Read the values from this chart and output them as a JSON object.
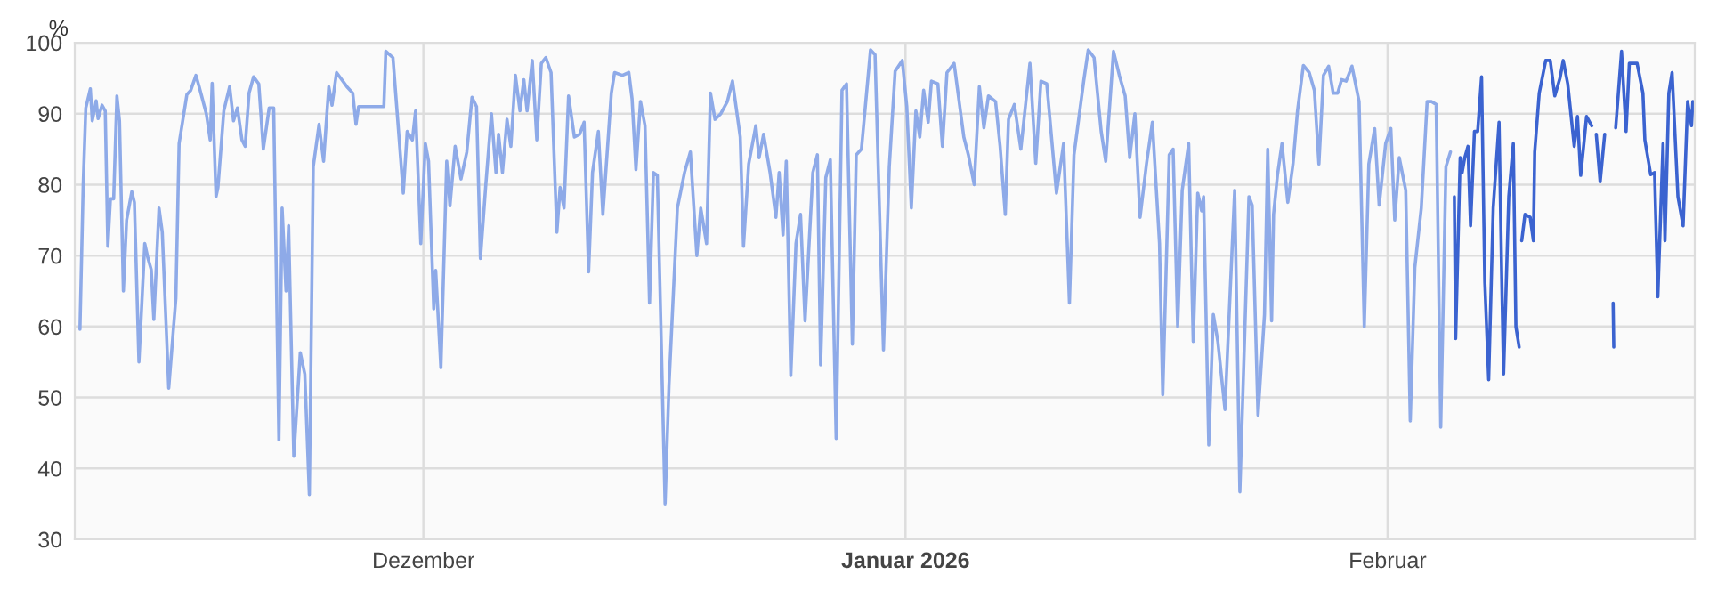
{
  "chart_data": {
    "type": "line",
    "ylabel": "%",
    "xlim": [
      "2025-11-08T14:00",
      "2026-02-20T18:00"
    ],
    "xticks": [
      {
        "value": "2025-12-01",
        "label": "Dezember"
      },
      {
        "value": "2026-01-01",
        "label": "Januar 2026"
      },
      {
        "value": "2026-02-01",
        "label": "Februar"
      }
    ],
    "ylim": [
      30,
      100
    ],
    "yticks": [
      30,
      40,
      50,
      60,
      70,
      80,
      90,
      100
    ],
    "grid": true,
    "line_style": "solid",
    "marker": "none",
    "series": [
      {
        "color": "#8eaae8",
        "x": [
          "2025-11-08T22:00",
          "2025-11-09T03:00",
          "2025-11-09T07:00",
          "2025-11-09T14:00",
          "2025-11-09T17:00",
          "2025-11-09T23:00",
          "2025-11-10T02:00",
          "2025-11-10T08:00",
          "2025-11-10T13:00",
          "2025-11-10T17:00",
          "2025-11-10T21:00",
          "2025-11-11T02:00",
          "2025-11-11T07:00",
          "2025-11-11T11:00",
          "2025-11-11T17:00",
          "2025-11-11T22:00",
          "2025-11-12T06:00",
          "2025-11-12T10:00",
          "2025-11-12T17:00",
          "2025-11-13T02:00",
          "2025-11-13T07:00",
          "2025-11-13T12:00",
          "2025-11-13T16:00",
          "2025-11-14T00:00",
          "2025-11-14T05:00",
          "2025-11-14T15:00",
          "2025-11-15T02:00",
          "2025-11-15T07:00",
          "2025-11-15T19:00",
          "2025-11-16T01:00",
          "2025-11-16T09:00",
          "2025-11-16T14:00",
          "2025-11-17T01:00",
          "2025-11-17T07:00",
          "2025-11-17T10:00",
          "2025-11-17T16:00",
          "2025-11-17T19:00",
          "2025-11-18T04:00",
          "2025-11-18T13:00",
          "2025-11-18T19:00",
          "2025-11-19T01:00",
          "2025-11-19T08:00",
          "2025-11-19T13:00",
          "2025-11-19T19:00",
          "2025-11-20T02:00",
          "2025-11-20T10:00",
          "2025-11-20T17:00",
          "2025-11-21T02:00",
          "2025-11-21T09:00",
          "2025-11-21T17:00",
          "2025-11-21T22:00",
          "2025-11-22T04:00",
          "2025-11-22T08:00",
          "2025-11-22T16:00",
          "2025-11-23T02:00",
          "2025-11-23T09:00",
          "2025-11-23T16:00",
          "2025-11-23T22:00",
          "2025-11-24T07:00",
          "2025-11-24T14:00",
          "2025-11-24T22:00",
          "2025-11-25T03:00",
          "2025-11-25T10:00",
          "2025-11-26T02:00",
          "2025-11-26T11:00",
          "2025-11-26T16:00",
          "2025-11-26T20:00",
          "2025-11-28T11:00",
          "2025-11-28T14:00",
          "2025-11-29T01:00",
          "2025-11-29T17:00",
          "2025-11-29T23:00",
          "2025-11-30T07:00",
          "2025-11-30T12:00",
          "2025-11-30T20:00",
          "2025-12-01T03:00",
          "2025-12-01T08:00",
          "2025-12-01T16:00",
          "2025-12-01T19:00",
          "2025-12-02T03:00",
          "2025-12-02T12:00",
          "2025-12-02T17:00",
          "2025-12-03T01:00",
          "2025-12-03T10:00",
          "2025-12-03T19:00",
          "2025-12-04T03:00",
          "2025-12-04T10:00",
          "2025-12-04T16:00",
          "2025-12-05T00:00",
          "2025-12-05T09:00",
          "2025-12-05T16:00",
          "2025-12-05T20:00",
          "2025-12-06T02:00",
          "2025-12-06T09:00",
          "2025-12-06T15:00",
          "2025-12-06T22:00",
          "2025-12-07T05:00",
          "2025-12-07T11:00",
          "2025-12-07T16:00",
          "2025-12-08T00:00",
          "2025-12-08T07:00",
          "2025-12-08T14:00",
          "2025-12-08T21:00",
          "2025-12-09T05:00",
          "2025-12-09T14:00",
          "2025-12-09T19:00",
          "2025-12-10T01:00",
          "2025-12-10T08:00",
          "2025-12-10T17:00",
          "2025-12-11T01:00",
          "2025-12-11T08:00",
          "2025-12-11T15:00",
          "2025-12-11T21:00",
          "2025-12-12T06:00",
          "2025-12-12T13:00",
          "2025-12-13T02:00",
          "2025-12-13T07:00",
          "2025-12-13T19:00",
          "2025-12-14T05:00",
          "2025-12-14T10:00",
          "2025-12-14T16:00",
          "2025-12-14T23:00",
          "2025-12-15T06:00",
          "2025-12-15T13:00",
          "2025-12-15T19:00",
          "2025-12-16T01:00",
          "2025-12-16T13:00",
          "2025-12-16T19:00",
          "2025-12-17T08:00",
          "2025-12-17T19:00",
          "2025-12-18T04:00",
          "2025-12-18T14:00",
          "2025-12-18T20:00",
          "2025-12-19T05:00",
          "2025-12-19T11:00",
          "2025-12-19T18:00",
          "2025-12-20T03:00",
          "2025-12-20T13:00",
          "2025-12-20T21:00",
          "2025-12-21T09:00",
          "2025-12-21T14:00",
          "2025-12-21T22:00",
          "2025-12-22T09:00",
          "2025-12-22T14:00",
          "2025-12-22T21:00",
          "2025-12-23T07:00",
          "2025-12-23T16:00",
          "2025-12-23T21:00",
          "2025-12-24T03:00",
          "2025-12-24T08:00",
          "2025-12-24T15:00",
          "2025-12-24T23:00",
          "2025-12-25T06:00",
          "2025-12-25T13:00",
          "2025-12-26T01:00",
          "2025-12-26T08:00",
          "2025-12-26T13:00",
          "2025-12-26T21:00",
          "2025-12-27T04:00",
          "2025-12-27T13:00",
          "2025-12-27T22:00",
          "2025-12-28T05:00",
          "2025-12-28T14:00",
          "2025-12-28T20:00",
          "2025-12-29T04:00",
          "2025-12-29T18:00",
          "2025-12-30T01:00",
          "2025-12-30T14:00",
          "2025-12-30T23:00",
          "2025-12-31T08:00",
          "2025-12-31T19:00",
          "2026-01-01T02:00",
          "2026-01-01T09:00",
          "2026-01-01T16:00",
          "2026-01-01T22:00",
          "2026-01-02T04:00",
          "2026-01-02T11:00",
          "2026-01-02T16:00",
          "2026-01-03T02:00",
          "2026-01-03T09:00",
          "2026-01-03T16:00",
          "2026-01-04T03:00",
          "2026-01-04T18:00",
          "2026-01-05T01:00",
          "2026-01-05T10:00",
          "2026-01-05T18:00",
          "2026-01-06T01:00",
          "2026-01-06T08:00",
          "2026-01-06T19:00",
          "2026-01-07T02:00",
          "2026-01-07T10:00",
          "2026-01-07T15:00",
          "2026-01-08T00:00",
          "2026-01-08T10:00",
          "2026-01-09T00:00",
          "2026-01-09T09:00",
          "2026-01-09T17:00",
          "2026-01-10T02:00",
          "2026-01-10T17:00",
          "2026-01-11T04:00",
          "2026-01-11T13:00",
          "2026-01-11T20:00",
          "2026-01-12T11:00",
          "2026-01-12T18:00",
          "2026-01-13T03:00",
          "2026-01-13T14:00",
          "2026-01-13T21:00",
          "2026-01-14T09:00",
          "2026-01-14T18:00",
          "2026-01-15T03:00",
          "2026-01-15T10:00",
          "2026-01-15T18:00",
          "2026-01-16T02:00",
          "2026-01-16T12:00",
          "2026-01-16T21:00",
          "2026-01-17T08:00",
          "2026-01-17T13:00",
          "2026-01-17T23:00",
          "2026-01-18T05:00",
          "2026-01-18T12:00",
          "2026-01-18T19:00",
          "2026-01-19T05:00",
          "2026-01-19T12:00",
          "2026-01-19T19:00",
          "2026-01-20T01:00",
          "2026-01-20T04:00",
          "2026-01-20T12:00",
          "2026-01-20T19:00",
          "2026-01-21T02:00",
          "2026-01-21T13:00",
          "2026-01-22T04:00",
          "2026-01-22T12:00",
          "2026-01-23T02:00",
          "2026-01-23T07:00",
          "2026-01-23T16:00",
          "2026-01-24T02:00",
          "2026-01-24T07:00",
          "2026-01-24T13:00",
          "2026-01-24T16:00",
          "2026-01-24T22:00",
          "2026-01-25T05:00",
          "2026-01-25T14:00",
          "2026-01-25T22:00",
          "2026-01-26T05:00",
          "2026-01-26T14:00",
          "2026-01-26T23:00",
          "2026-01-27T07:00",
          "2026-01-27T14:00",
          "2026-01-27T21:00",
          "2026-01-28T05:00",
          "2026-01-28T12:00",
          "2026-01-28T19:00",
          "2026-01-29T01:00",
          "2026-01-29T08:00",
          "2026-01-29T17:00",
          "2026-01-30T04:00",
          "2026-01-30T12:00",
          "2026-01-30T19:00",
          "2026-01-31T04:00",
          "2026-01-31T11:00",
          "2026-01-31T21:00",
          "2026-02-01T05:00",
          "2026-02-01T11:00",
          "2026-02-01T18:00",
          "2026-02-02T04:00",
          "2026-02-02T11:00",
          "2026-02-02T18:00",
          "2026-02-03T04:00",
          "2026-02-03T13:00",
          "2026-02-03T20:00",
          "2026-02-04T03:00",
          "2026-02-04T10:00",
          "2026-02-04T18:00",
          "2026-02-05T01:00"
        ],
        "values": [
          59.6,
          80,
          90.8,
          93.5,
          89,
          91.8,
          89.3,
          91.2,
          90.4,
          71.3,
          78,
          78,
          92.5,
          89,
          65,
          75,
          79,
          77.5,
          55,
          71.7,
          69.6,
          68,
          61,
          76.7,
          73.3,
          51.3,
          64,
          85.8,
          92.7,
          93.3,
          95.4,
          93.8,
          90,
          86.3,
          94.3,
          78.3,
          79.6,
          90.4,
          93.8,
          89,
          90.8,
          86.3,
          85.4,
          92.9,
          95.2,
          94.2,
          85,
          90.8,
          90.8,
          44,
          76.7,
          65,
          74.2,
          41.7,
          56.3,
          53.3,
          36.3,
          82.5,
          88.5,
          83.3,
          93.8,
          91.2,
          95.8,
          93.8,
          92.9,
          88.5,
          91,
          91,
          98.8,
          97.9,
          78.8,
          87.5,
          86.3,
          90.4,
          71.7,
          85.8,
          83.3,
          62.5,
          67.9,
          54.2,
          83.3,
          77,
          85.4,
          80.8,
          84.6,
          92.3,
          91,
          69.6,
          79.6,
          90,
          81.7,
          87.1,
          81.7,
          89.2,
          85.4,
          95.4,
          90.4,
          94.8,
          90.4,
          97.5,
          86.3,
          97.1,
          97.9,
          95.8,
          73.3,
          79.6,
          76.7,
          92.5,
          86.7,
          87.1,
          88.8,
          67.7,
          81.7,
          87.5,
          75.8,
          92.9,
          95.8,
          95.4,
          95.8,
          92.1,
          82.1,
          91.7,
          88.3,
          63.3,
          81.7,
          81.3,
          35,
          51.7,
          76.7,
          81.7,
          84.6,
          70,
          76.7,
          71.7,
          92.9,
          89.2,
          90,
          91.7,
          94.6,
          86.7,
          71.3,
          82.9,
          88.3,
          83.8,
          87.1,
          81.7,
          75.4,
          81.7,
          72.9,
          83.3,
          53.1,
          71.7,
          75.8,
          60.8,
          81.7,
          84.2,
          54.6,
          81,
          83.5,
          44.2,
          93.3,
          94.2,
          57.5,
          84.2,
          85,
          99,
          98.3,
          56.7,
          82.5,
          96,
          97.5,
          91,
          76.7,
          90.4,
          86.7,
          93.3,
          88.8,
          94.6,
          94.2,
          85.4,
          95.8,
          97.1,
          86.7,
          84.2,
          80,
          93.8,
          88,
          92.5,
          91.7,
          85.4,
          75.8,
          89.2,
          91.3,
          85,
          97.1,
          83,
          94.6,
          94.2,
          78.8,
          85.8,
          63.3,
          84.2,
          94.6,
          99,
          97.9,
          87.5,
          83.3,
          98.8,
          95.4,
          92.5,
          83.8,
          90,
          75.4,
          83,
          88.8,
          71.7,
          50.4,
          84.2,
          85,
          60,
          79.2,
          85.8,
          57.9,
          78.8,
          76.3,
          78.3,
          43.3,
          61.7,
          57.9,
          48.3,
          79.2,
          36.7,
          78.3,
          77.1,
          47.5,
          61.7,
          85,
          60.8,
          75.8,
          81.3,
          85.8,
          77.5,
          82.9,
          90.4,
          96.8,
          95.8,
          93.3,
          82.9,
          95.4,
          96.7,
          92.9,
          92.9,
          94.8,
          94.6,
          96.7,
          91.7,
          60,
          82.9,
          87.9,
          77.1,
          85.8,
          87.9,
          75,
          83.8,
          79.2,
          46.7,
          68.3,
          76.7,
          91.7,
          91.7,
          91.3,
          45.8,
          82.5,
          84.6
        ]
      },
      {
        "color": "#3b63d0",
        "x": [
          "2026-02-05T07:00",
          "2026-02-05T09:00",
          "2026-02-05T16:00",
          "2026-02-05T19:00",
          "2026-02-05T23:00",
          "2026-02-06T04:00",
          "2026-02-06T08:00",
          "2026-02-06T14:00",
          "2026-02-06T19:00",
          "2026-02-07T01:00",
          "2026-02-07T06:00",
          "2026-02-07T12:00",
          "2026-02-07T19:00",
          "2026-02-08T04:00",
          "2026-02-08T08:00",
          "2026-02-08T11:00",
          "2026-02-08T19:00",
          "2026-02-09T02:00",
          "2026-02-09T06:00",
          "2026-02-09T11:00",
          "2026-02-09T12:00",
          "2026-02-09T15:00",
          "2026-02-09T20:00",
          "2026-02-10T04:00",
          "2026-02-10T09:00",
          "2026-02-10T11:00",
          "2026-02-10T18:00",
          "2026-02-11T04:00",
          "2026-02-11T11:00",
          "2026-02-11T18:00",
          "2026-02-12T02:00",
          "2026-02-12T07:00",
          "2026-02-12T14:00",
          "2026-02-13T00:00",
          "2026-02-13T05:00",
          "2026-02-13T10:00",
          "2026-02-13T19:00",
          "2026-02-14T03:00",
          "2026-02-14T05:00",
          "2026-02-14T10:00",
          "2026-02-14T16:00",
          "2026-02-14T23:00",
          "2026-02-15T06:00",
          "2026-02-15T12:00",
          "2026-02-15T13:00",
          "2026-02-15T15:00",
          "2026-02-15T16:00",
          "2026-02-16T01:00",
          "2026-02-16T08:00",
          "2026-02-16T13:00",
          "2026-02-17T01:00",
          "2026-02-17T10:00",
          "2026-02-17T13:00",
          "2026-02-17T22:00",
          "2026-02-18T04:00",
          "2026-02-18T09:00",
          "2026-02-18T17:00",
          "2026-02-18T20:00",
          "2026-02-19T02:00",
          "2026-02-19T07:00",
          "2026-02-19T16:00",
          "2026-02-20T00:00",
          "2026-02-20T07:00",
          "2026-02-20T13:00",
          "2026-02-20T15:00"
        ],
        "values": [
          78.3,
          58.3,
          83.8,
          81.7,
          83.8,
          85.4,
          74.2,
          87.5,
          87.5,
          95.2,
          66.3,
          52.5,
          76.7,
          88.8,
          67.5,
          53.3,
          78.3,
          85.8,
          60,
          57.1,
          null,
          72.1,
          75.8,
          75.4,
          72.1,
          84.6,
          92.9,
          97.5,
          97.5,
          92.5,
          95,
          97.5,
          94.2,
          85.4,
          89.6,
          81.3,
          89.6,
          88.3,
          null,
          87.1,
          80.4,
          87.1,
          null,
          63.3,
          57.1,
          null,
          88,
          98.8,
          87.5,
          97.1,
          97.1,
          92.9,
          86.3,
          81.4,
          81.7,
          64.2,
          85.8,
          72.1,
          92.9,
          95.8,
          78.3,
          74.2,
          91.7,
          88.3,
          91.7
        ]
      }
    ]
  }
}
